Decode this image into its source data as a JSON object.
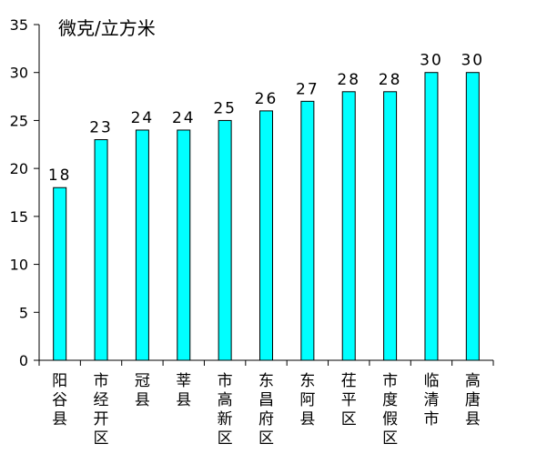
{
  "chart_data": {
    "type": "bar",
    "title": "",
    "unit_label": "微克/立方米",
    "xlabel": "",
    "ylabel": "",
    "ylim": [
      0,
      35
    ],
    "yticks": [
      0,
      5,
      10,
      15,
      20,
      25,
      30,
      35
    ],
    "grid": false,
    "bar_color": "#00ffff",
    "bar_edge_color": "#000000",
    "categories": [
      "阳谷县",
      "市经开区",
      "冠县",
      "莘县",
      "市高新区",
      "东昌府区",
      "东阿县",
      "茌平区",
      "市度假区",
      "临清市",
      "高唐县"
    ],
    "values": [
      18,
      23,
      24,
      24,
      25,
      26,
      27,
      28,
      28,
      30,
      30
    ]
  }
}
